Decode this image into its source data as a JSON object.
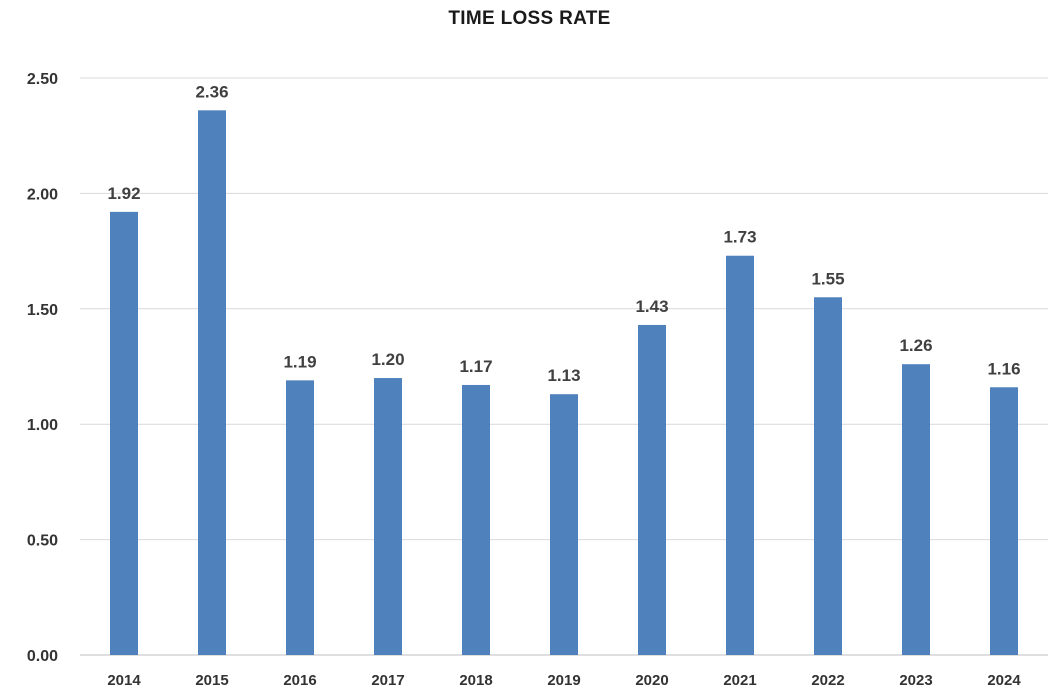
{
  "chart_data": {
    "type": "bar",
    "title": "TIME LOSS RATE",
    "xlabel": "",
    "ylabel": "",
    "categories": [
      "2014",
      "2015",
      "2016",
      "2017",
      "2018",
      "2019",
      "2020",
      "2021",
      "2022",
      "2023",
      "2024"
    ],
    "values": [
      1.92,
      2.36,
      1.19,
      1.2,
      1.17,
      1.13,
      1.43,
      1.73,
      1.55,
      1.26,
      1.16
    ],
    "data_labels": [
      "1.92",
      "2.36",
      "1.19",
      "1.20",
      "1.17",
      "1.13",
      "1.43",
      "1.73",
      "1.55",
      "1.26",
      "1.16"
    ],
    "ylim": [
      0,
      2.5
    ],
    "yticks": [
      "0.00",
      "0.50",
      "1.00",
      "1.50",
      "2.00",
      "2.50"
    ],
    "grid": true,
    "legend": "none",
    "bar_color": "#4f81bd",
    "grid_color": "#d9d9d9",
    "text_color": "#333333"
  }
}
